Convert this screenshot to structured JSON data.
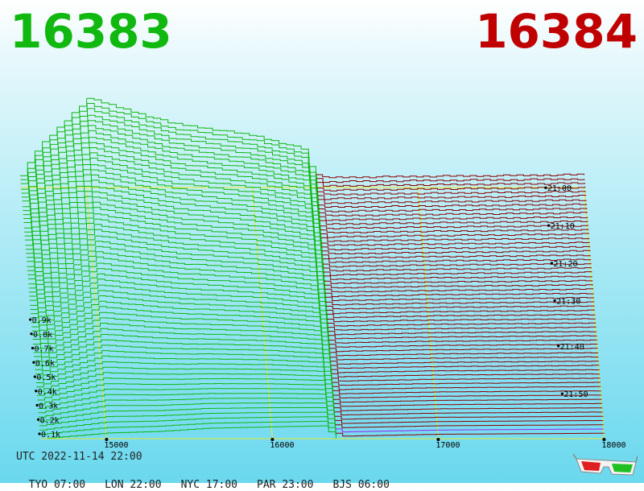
{
  "header": {
    "best_bid": "16383",
    "best_ask": "16384",
    "bid_color": "#10b810",
    "ask_color": "#c00000"
  },
  "footer": {
    "utc": "UTC 2022-11-14 22:00",
    "zones": [
      "TYO 07:00",
      "LON 22:00",
      "NYC 17:00",
      "PAR 23:00",
      "BJS 06:00"
    ]
  },
  "icons": {
    "glasses": "3d-glasses-icon"
  },
  "chart_data": {
    "type": "line",
    "title": "",
    "subtitle": "",
    "xlabel": "",
    "ylabel": "",
    "projection": "3d-oblique",
    "grid": true,
    "x_axis": {
      "ticks": [
        15000,
        16000,
        17000,
        18000
      ],
      "tick_labels": [
        "15000",
        "16000",
        "17000",
        "18000"
      ],
      "range": [
        14600,
        18000
      ],
      "split_price": 16383.5
    },
    "y_axis": {
      "ticks": [
        100,
        200,
        300,
        400,
        500,
        600,
        700,
        800,
        900
      ],
      "tick_labels": [
        "0.1k",
        "0.2k",
        "0.3k",
        "0.4k",
        "0.5k",
        "0.6k",
        "0.7k",
        "0.8k",
        "0.9k"
      ],
      "range": [
        0,
        900
      ]
    },
    "time_axis": {
      "ticks": [
        "21:00",
        "21:10",
        "21:20",
        "21:30",
        "21:40",
        "21:50"
      ],
      "range": [
        "20:58",
        "22:00"
      ],
      "snapshots": 62
    },
    "series": [
      {
        "side": "bid",
        "color": "#10b810",
        "depth_profile_front": [
          [
            14600,
            0
          ],
          [
            15000,
            46
          ],
          [
            15300,
            58
          ],
          [
            15600,
            84
          ],
          [
            16000,
            96
          ],
          [
            16300,
            104
          ],
          [
            16383,
            0
          ]
        ],
        "depth_profile_back": [
          [
            14600,
            95
          ],
          [
            14700,
            320
          ],
          [
            15000,
            720
          ],
          [
            15500,
            520
          ],
          [
            16000,
            420
          ],
          [
            16300,
            310
          ],
          [
            16383,
            0
          ]
        ]
      },
      {
        "side": "ask",
        "color": "#8b0000",
        "depth_profile_front": [
          [
            16384,
            0
          ],
          [
            16400,
            20
          ],
          [
            17000,
            36
          ],
          [
            17500,
            40
          ],
          [
            18000,
            44
          ]
        ],
        "depth_profile_back": [
          [
            16384,
            0
          ],
          [
            16400,
            80
          ],
          [
            17000,
            90
          ],
          [
            17500,
            96
          ],
          [
            18000,
            104
          ]
        ]
      }
    ]
  }
}
